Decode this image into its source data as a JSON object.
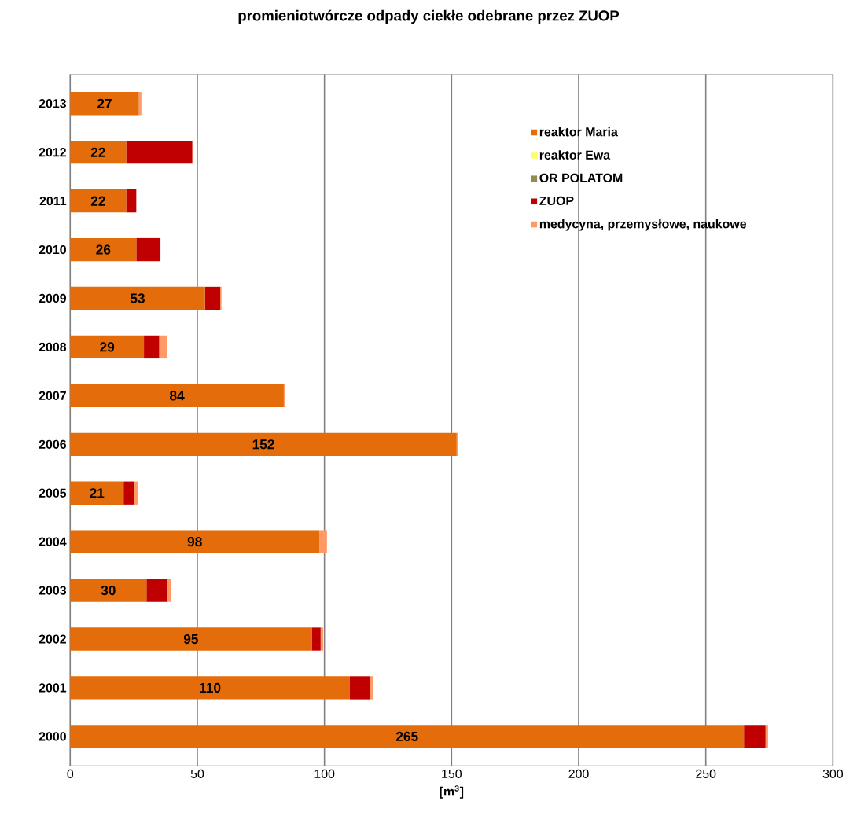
{
  "chart_data": {
    "type": "bar",
    "orientation": "horizontal",
    "stacked": true,
    "title": "promieniotwórcze odpady ciekłe odebrane przez ZUOP",
    "xlabel": "[m$^{3}$]",
    "categories": [
      "2013",
      "2012",
      "2011",
      "2010",
      "2009",
      "2008",
      "2007",
      "2006",
      "2005",
      "2004",
      "2003",
      "2002",
      "2001",
      "2000"
    ],
    "series": [
      {
        "name": "reaktor Maria",
        "color": "#e46c0a",
        "values": [
          27,
          22,
          22,
          26,
          53,
          29,
          84,
          152,
          21,
          98,
          30,
          95,
          110,
          265
        ],
        "value_labels": [
          "27",
          "22",
          "22",
          "26",
          "53",
          "29",
          "84",
          "152",
          "21",
          "98",
          "30",
          "95",
          "110",
          "265"
        ]
      },
      {
        "name": "reaktor Ewa",
        "color": "#ffff66",
        "values": [
          0,
          0,
          0,
          0,
          0,
          0,
          0,
          0,
          0,
          0,
          0,
          0,
          0,
          0
        ]
      },
      {
        "name": "OR POLATOM",
        "color": "#948a54",
        "values": [
          0,
          0,
          0,
          0,
          0,
          0,
          0,
          0,
          0,
          0,
          0,
          0,
          0,
          0
        ]
      },
      {
        "name": "ZUOP",
        "color": "#c00000",
        "values": [
          0,
          26,
          4,
          9.5,
          6,
          6,
          0,
          0,
          4,
          0,
          8,
          3.5,
          8,
          8.5
        ]
      },
      {
        "name": "medycyna, przemysłowe, naukowe",
        "color": "#ff9966",
        "values": [
          1,
          0.5,
          0,
          0,
          0.5,
          3,
          0.5,
          0.5,
          1.5,
          3,
          1.5,
          1,
          1,
          1
        ]
      }
    ],
    "xlim": [
      0,
      300
    ],
    "xticks": [
      0,
      50,
      100,
      150,
      200,
      250,
      300
    ],
    "grid": "x",
    "legend": "top right"
  }
}
